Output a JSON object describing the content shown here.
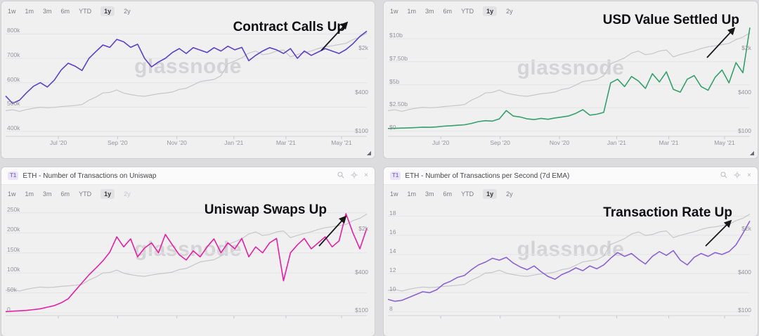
{
  "shared": {
    "watermark": "glassnode",
    "price_axis": {
      "scale": "log",
      "min": 85,
      "max": 4300,
      "ticks": [
        2000,
        400,
        100
      ],
      "tick_labels": [
        "$2k",
        "$400",
        "$100"
      ],
      "name": "ETH price (USD)"
    },
    "eth_price_usd": [
      205,
      212,
      200,
      214,
      224,
      232,
      228,
      231,
      238,
      243,
      248,
      256,
      300,
      336,
      390,
      398,
      433,
      388,
      368,
      352,
      345,
      362,
      378,
      388,
      403,
      443,
      462,
      520,
      588,
      612,
      636,
      728,
      1120,
      1242,
      1390,
      1650,
      1780,
      1560,
      1620,
      1780,
      1850,
      1440,
      1570,
      1680,
      1790,
      1950,
      2080,
      2150,
      2250,
      2350,
      2700,
      2950,
      3450
    ]
  },
  "panels": [
    {
      "annotation": "Contract Calls Up",
      "timeranges": [
        "1w",
        "1m",
        "3m",
        "6m",
        "YTD",
        "1y",
        "2y"
      ],
      "selected_range": "1y"
    },
    {
      "annotation": "USD Value Settled Up",
      "timeranges": [
        "1w",
        "1m",
        "3m",
        "6m",
        "YTD",
        "1y",
        "2y"
      ],
      "selected_range": "1y"
    },
    {
      "header": {
        "badge": "T1",
        "title": "ETH - Number of Transactions on Uniswap"
      },
      "annotation": "Uniswap Swaps Up",
      "timeranges": [
        "1w",
        "1m",
        "3m",
        "6m",
        "YTD",
        "1y",
        "2y"
      ],
      "selected_range": "1y",
      "disabled_range": "2y"
    },
    {
      "header": {
        "badge": "T1",
        "title": "ETH - Number of Transactions per Second (7d EMA)"
      },
      "annotation": "Transaction Rate Up",
      "timeranges": [
        "1w",
        "1m",
        "3m",
        "6m",
        "YTD",
        "1y",
        "2y"
      ],
      "selected_range": "1y"
    }
  ],
  "chart_data": [
    {
      "type": "line",
      "title": "Contract Calls Up",
      "x_range": "May 2020 - May 2021 (weekly)",
      "x_tick_labels": [
        "Jul '20",
        "Sep '20",
        "Nov '20",
        "Jan '21",
        "Mar '21",
        "May '21"
      ],
      "left_axis": {
        "scale": "linear",
        "min": 385,
        "max": 830,
        "ticks": [
          800,
          700,
          600,
          500,
          400
        ],
        "tick_labels": [
          "800k",
          "700k",
          "600k",
          "500k",
          "400k"
        ],
        "unit": "thousand contract calls"
      },
      "series": [
        {
          "name": "ETH contract calls (thousands)",
          "color": "#5a41c8",
          "axis": "left",
          "values": [
            545,
            515,
            528,
            558,
            585,
            600,
            582,
            610,
            652,
            680,
            668,
            650,
            700,
            728,
            755,
            745,
            778,
            768,
            745,
            758,
            700,
            665,
            685,
            700,
            724,
            740,
            720,
            744,
            734,
            724,
            744,
            730,
            750,
            735,
            745,
            690,
            712,
            730,
            744,
            735,
            720,
            740,
            700,
            730,
            712,
            726,
            740,
            730,
            720,
            736,
            760,
            790,
            812
          ]
        },
        {
          "name": "ETH price (USD)",
          "color": "#c7c7c9",
          "axis": "right",
          "values_from": "eth_price_usd"
        }
      ]
    },
    {
      "type": "line",
      "title": "USD Value Settled Up",
      "x_range": "May 2020 - May 2021 (weekly)",
      "x_tick_labels": [
        "Jul '20",
        "Sep '20",
        "Nov '20",
        "Jan '21",
        "Mar '21",
        "May '21"
      ],
      "left_axis": {
        "scale": "linear",
        "min": -0.45,
        "max": 11.3,
        "ticks": [
          10,
          7.5,
          5,
          2.5,
          0
        ],
        "tick_labels": [
          "$10b",
          "$7.50b",
          "$5b",
          "$2.50b",
          "$0"
        ],
        "unit": "billion USD settled"
      },
      "series": [
        {
          "name": "USD value settled (billions)",
          "color": "#34a06b",
          "axis": "left",
          "values": [
            0.25,
            0.27,
            0.3,
            0.32,
            0.35,
            0.4,
            0.38,
            0.42,
            0.5,
            0.55,
            0.6,
            0.66,
            0.8,
            1.0,
            1.1,
            1.05,
            1.3,
            2.2,
            1.6,
            1.5,
            1.3,
            1.22,
            1.35,
            1.25,
            1.4,
            1.5,
            1.62,
            1.9,
            2.3,
            1.7,
            1.8,
            2.0,
            5.2,
            5.6,
            4.8,
            5.9,
            5.4,
            4.6,
            6.2,
            5.3,
            6.4,
            4.5,
            4.2,
            5.6,
            6.0,
            4.8,
            4.4,
            5.8,
            6.6,
            5.2,
            7.4,
            6.3,
            11.2
          ]
        },
        {
          "name": "ETH price (USD)",
          "color": "#c7c7c9",
          "axis": "right",
          "values_from": "eth_price_usd"
        }
      ]
    },
    {
      "type": "line",
      "title": "Uniswap Swaps Up",
      "x_range": "May 2020 - May 2021 (weekly)",
      "x_tick_labels": [],
      "left_axis": {
        "scale": "linear",
        "min": -3.5,
        "max": 262,
        "ticks": [
          250,
          200,
          150,
          100,
          50,
          0
        ],
        "tick_labels": [
          "250k",
          "200k",
          "150k",
          "100k",
          "50k",
          "0"
        ],
        "unit": "thousand transactions on Uniswap"
      },
      "series": [
        {
          "name": "Uniswap transactions (thousands)",
          "color": "#e222a3",
          "axis": "left",
          "values": [
            3,
            4,
            5,
            6,
            8,
            10,
            14,
            18,
            25,
            35,
            55,
            75,
            95,
            112,
            130,
            152,
            190,
            165,
            185,
            140,
            162,
            175,
            150,
            196,
            170,
            145,
            132,
            155,
            140,
            165,
            185,
            150,
            175,
            160,
            186,
            140,
            165,
            150,
            175,
            186,
            80,
            150,
            170,
            186,
            160,
            175,
            190,
            165,
            180,
            248,
            200,
            160,
            212
          ]
        },
        {
          "name": "ETH price (USD)",
          "color": "#c7c7c9",
          "axis": "right",
          "values_from": "eth_price_usd"
        }
      ]
    },
    {
      "type": "line",
      "title": "Transaction Rate Up",
      "x_range": "May 2020 - May 2021 (weekly)",
      "x_tick_labels": [],
      "left_axis": {
        "scale": "linear",
        "min": 7.75,
        "max": 18.85,
        "ticks": [
          18,
          16,
          14,
          12,
          10,
          8
        ],
        "tick_labels": [
          "18",
          "16",
          "14",
          "12",
          "10",
          "8"
        ],
        "unit": "transactions per second (7d EMA)"
      },
      "series": [
        {
          "name": "Transactions per second (7d EMA)",
          "color": "#8a63d2",
          "axis": "left",
          "values": [
            9.3,
            9.1,
            9.2,
            9.5,
            9.8,
            10.1,
            10.0,
            10.3,
            10.9,
            11.2,
            11.6,
            11.8,
            12.4,
            12.9,
            13.2,
            13.6,
            13.4,
            13.7,
            13.1,
            12.7,
            12.4,
            12.8,
            12.2,
            11.7,
            11.4,
            11.9,
            12.2,
            12.6,
            12.3,
            12.8,
            12.5,
            12.9,
            13.6,
            14.2,
            13.8,
            14.1,
            13.5,
            13.0,
            13.8,
            14.3,
            13.9,
            14.4,
            13.4,
            12.9,
            13.7,
            14.1,
            13.8,
            14.2,
            14.0,
            14.3,
            15.0,
            16.2,
            17.5
          ]
        },
        {
          "name": "ETH price (USD)",
          "color": "#c7c7c9",
          "axis": "right",
          "values_from": "eth_price_usd"
        }
      ]
    }
  ]
}
